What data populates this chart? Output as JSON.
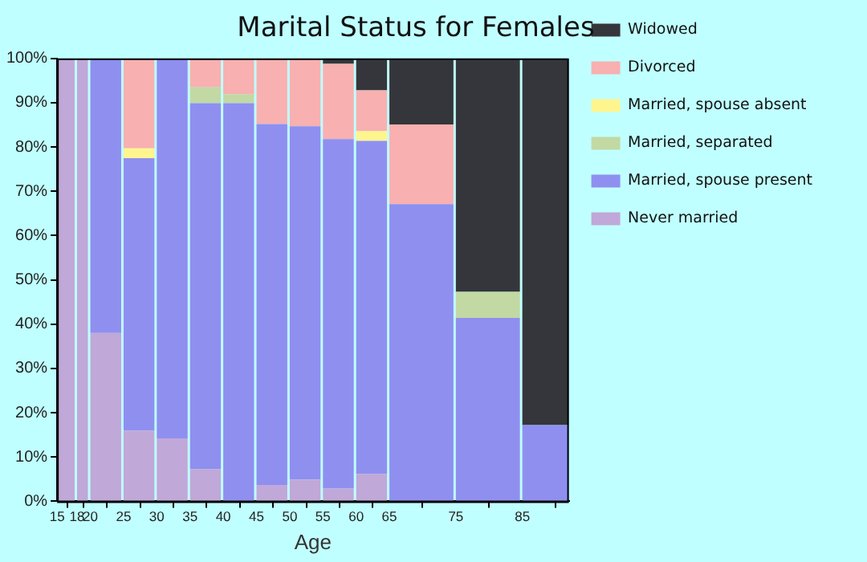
{
  "chart_data": {
    "type": "bar",
    "stacked": true,
    "title": "Marital Status for Females",
    "xlabel": "Age",
    "x": [
      16.5,
      19,
      22.5,
      27.5,
      32.5,
      37.5,
      42.5,
      47.5,
      52.5,
      57.5,
      62.5,
      70,
      80,
      88.5
    ],
    "xlim": [
      15,
      92
    ],
    "xticks": [
      15,
      18,
      20,
      25,
      30,
      35,
      40,
      45,
      50,
      55,
      60,
      65,
      75,
      85
    ],
    "ylim": [
      0,
      100
    ],
    "yticks": [
      {
        "value": 0,
        "label": "0%"
      },
      {
        "value": 10,
        "label": "10%"
      },
      {
        "value": 20,
        "label": "20%"
      },
      {
        "value": 30,
        "label": "30%"
      },
      {
        "value": 40,
        "label": "40%"
      },
      {
        "value": 50,
        "label": "50%"
      },
      {
        "value": 60,
        "label": "60%"
      },
      {
        "value": 70,
        "label": "70%"
      },
      {
        "value": 80,
        "label": "80%"
      },
      {
        "value": 90,
        "label": "90%"
      },
      {
        "value": 100,
        "label": "100%"
      }
    ],
    "grid": false,
    "legend": "right",
    "series": [
      {
        "name": "Never married",
        "color": "#c0a8d8",
        "values": [
          100,
          100,
          38,
          16,
          14.2,
          7.3,
          0,
          3.7,
          4.9,
          2.9,
          6.2,
          0,
          0,
          0
        ]
      },
      {
        "name": "Married, spouse present",
        "color": "#8f8ff0",
        "values": [
          0,
          0,
          62,
          61.5,
          85.8,
          82.6,
          89.9,
          81.5,
          79.8,
          78.9,
          75.2,
          67.1,
          41.4,
          17.2
        ]
      },
      {
        "name": "Married, separated",
        "color": "#c2d9a4",
        "values": [
          0,
          0,
          0,
          0,
          0,
          3.6,
          2,
          0,
          0,
          0,
          0,
          0,
          5.9,
          0
        ]
      },
      {
        "name": "Married, spouse absent",
        "color": "#fff58f",
        "values": [
          0,
          0,
          0,
          2.2,
          0,
          0,
          0,
          0,
          0,
          0,
          2.2,
          0,
          0,
          0
        ]
      },
      {
        "name": "Divorced",
        "color": "#f8b0b0",
        "values": [
          0,
          0,
          0,
          20.3,
          0,
          6.5,
          8.1,
          14.8,
          15.3,
          17,
          9.2,
          18,
          0,
          0
        ]
      },
      {
        "name": "Widowed",
        "color": "#35363b",
        "values": [
          0,
          0,
          0,
          0,
          0,
          0,
          0,
          0,
          0,
          1.2,
          7.2,
          14.9,
          52.7,
          82.8
        ]
      }
    ]
  }
}
